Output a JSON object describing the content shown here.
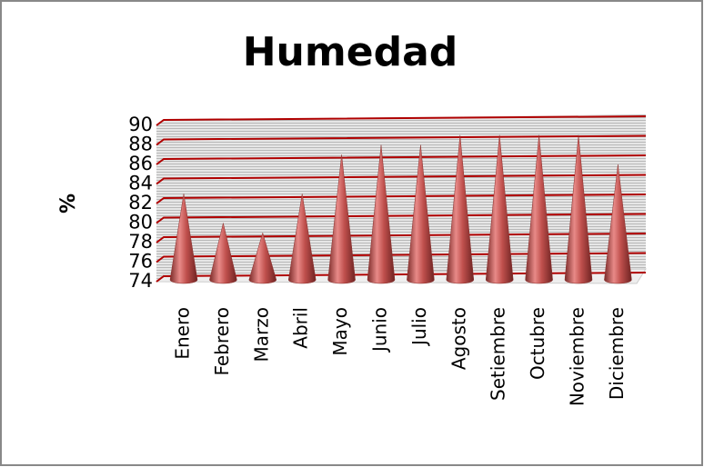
{
  "chart_data": {
    "type": "cone",
    "title": "Humedad",
    "y_label": "%",
    "categories": [
      "Enero",
      "Febrero",
      "Marzo",
      "Abril",
      "Mayo",
      "Junio",
      "Julio",
      "Agosto",
      "Setiembre",
      "Octubre",
      "Noviembre",
      "Diciembre"
    ],
    "values": [
      83,
      80,
      79,
      83,
      87,
      88,
      88,
      89,
      89,
      89,
      89,
      86
    ],
    "color": "#c0504d",
    "grid_color": "#b00000",
    "ylim": [
      74,
      90
    ],
    "yticks": [
      74,
      76,
      78,
      80,
      82,
      84,
      86,
      88,
      90
    ],
    "grid": true
  }
}
